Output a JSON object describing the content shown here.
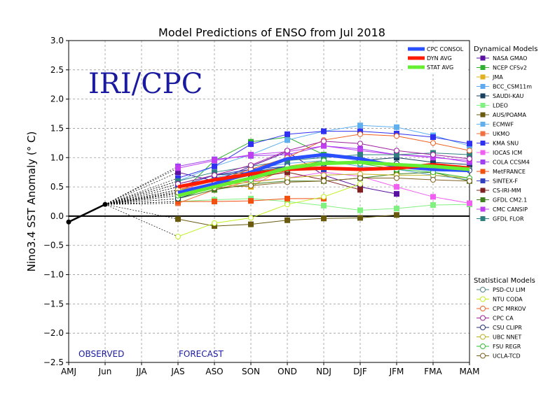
{
  "chart_data": {
    "type": "line",
    "title": "Model Predictions of ENSO from Jul 2018",
    "ylabel": "Nino3.4 SST Anomaly (° C)",
    "xlabel": "",
    "watermark": "IRI/CPC",
    "observed_label": "OBSERVED",
    "forecast_label": "FORECAST",
    "categories": [
      "AMJ",
      "Jun",
      "JJA",
      "JAS",
      "ASO",
      "SON",
      "OND",
      "NDJ",
      "DJF",
      "JFM",
      "FMA",
      "MAM"
    ],
    "yticks": [
      "3.0",
      "2.5",
      "2.0",
      "1.5",
      "1.0",
      "0.5",
      "0.0",
      "−0.5",
      "−1.0",
      "−1.5",
      "−2.0",
      "−2.5"
    ],
    "ytick_values": [
      3.0,
      2.5,
      2.0,
      1.5,
      1.0,
      0.5,
      0.0,
      -0.5,
      -1.0,
      -1.5,
      -2.0,
      -2.5
    ],
    "ylim": [
      -2.5,
      3.0
    ],
    "grid": true,
    "observed": [
      -0.1,
      0.2
    ],
    "consensus_legend": [
      {
        "name": "CPC CONSOL",
        "color": "#2a4fff"
      },
      {
        "name": "DYN AVG",
        "color": "#ff1a00"
      },
      {
        "name": "STAT AVG",
        "color": "#66ee33"
      }
    ],
    "dynamical_header": "Dynamical Models",
    "statistical_header": "Statistical Models",
    "consensus": [
      {
        "name": "CPC CONSOL",
        "color": "#2a4fff",
        "values": [
          null,
          null,
          null,
          0.4,
          0.55,
          0.75,
          0.98,
          1.05,
          0.98,
          0.85,
          0.8,
          0.78
        ]
      },
      {
        "name": "DYN AVG",
        "color": "#ff1a00",
        "values": [
          null,
          null,
          null,
          0.5,
          0.62,
          0.72,
          0.8,
          0.82,
          0.8,
          0.82,
          0.88,
          0.82
        ]
      },
      {
        "name": "STAT AVG",
        "color": "#66ee33",
        "values": [
          null,
          null,
          null,
          0.35,
          0.5,
          0.65,
          0.82,
          0.9,
          0.92,
          0.88,
          0.85,
          0.8
        ]
      }
    ],
    "dynamical": [
      {
        "name": "NASA GMAO",
        "color": "#5a10a0",
        "values": [
          null,
          null,
          null,
          0.75,
          0.6,
          0.85,
          1.1,
          0.7,
          0.5,
          0.38,
          null,
          null
        ]
      },
      {
        "name": "NCEP CFSv2",
        "color": "#30b030",
        "values": [
          null,
          null,
          null,
          0.35,
          0.95,
          1.27,
          1.35,
          1.05,
          1.0,
          null,
          null,
          null
        ]
      },
      {
        "name": "JMA",
        "color": "#e0b020",
        "values": [
          null,
          null,
          null,
          0.4,
          0.55,
          0.5,
          0.85,
          0.95,
          null,
          null,
          null,
          null
        ]
      },
      {
        "name": "BCC_CSM11m",
        "color": "#60a8f0",
        "values": [
          null,
          null,
          null,
          0.5,
          0.65,
          0.8,
          0.9,
          0.95,
          0.85,
          0.8,
          0.7,
          0.62
        ]
      },
      {
        "name": "SAUDI-KAU",
        "color": "#184060",
        "values": [
          null,
          null,
          null,
          0.55,
          0.7,
          0.75,
          0.85,
          0.9,
          0.95,
          1.0,
          0.92,
          0.88
        ]
      },
      {
        "name": "LDEO",
        "color": "#80f080",
        "values": [
          null,
          null,
          null,
          0.25,
          0.28,
          0.3,
          0.25,
          0.18,
          0.1,
          0.13,
          0.19,
          0.2
        ]
      },
      {
        "name": "AUS/POAMA",
        "color": "#6a5a10",
        "values": [
          null,
          null,
          null,
          -0.05,
          -0.17,
          -0.14,
          -0.07,
          -0.04,
          -0.03,
          0.02,
          null,
          null
        ]
      },
      {
        "name": "ECMWF",
        "color": "#60b0f0",
        "values": [
          null,
          null,
          null,
          0.6,
          0.85,
          1.05,
          1.3,
          1.45,
          1.55,
          1.52,
          1.38,
          1.2
        ]
      },
      {
        "name": "UKMO",
        "color": "#f07040",
        "values": [
          null,
          null,
          null,
          0.22,
          0.45,
          0.6,
          0.78,
          null,
          null,
          null,
          null,
          null
        ]
      },
      {
        "name": "KMA SNU",
        "color": "#3030f0",
        "values": [
          null,
          null,
          null,
          0.65,
          0.85,
          1.23,
          1.4,
          1.45,
          1.45,
          1.41,
          1.35,
          1.24
        ]
      },
      {
        "name": "IOCAS ICM",
        "color": "#f060f0",
        "values": [
          null,
          null,
          null,
          0.45,
          0.55,
          0.6,
          0.65,
          0.75,
          0.68,
          0.5,
          0.33,
          0.22
        ]
      },
      {
        "name": "COLA CCSM4",
        "color": "#a040f0",
        "values": [
          null,
          null,
          null,
          0.85,
          0.97,
          1.03,
          1.05,
          1.2,
          1.15,
          1.05,
          1.02,
          0.92
        ]
      },
      {
        "name": "MetFRANCE",
        "color": "#f05010",
        "values": [
          null,
          null,
          null,
          0.25,
          0.25,
          0.26,
          0.3,
          0.3,
          null,
          null,
          null,
          null
        ]
      },
      {
        "name": "SINTEX-F",
        "color": "#3040c0",
        "values": [
          null,
          null,
          null,
          0.5,
          0.7,
          0.8,
          0.85,
          0.8,
          null,
          null,
          null,
          null
        ]
      },
      {
        "name": "CS-IRI-MM",
        "color": "#802020",
        "values": [
          null,
          null,
          null,
          0.42,
          0.55,
          0.65,
          0.75,
          0.62,
          0.45,
          null,
          null,
          null
        ]
      },
      {
        "name": "GFDL CM2.1",
        "color": "#408020",
        "values": [
          null,
          null,
          null,
          0.3,
          0.45,
          0.55,
          0.6,
          0.6,
          0.65,
          0.72,
          0.75,
          0.6
        ]
      },
      {
        "name": "CMC CANSIP",
        "color": "#c040f0",
        "values": [
          null,
          null,
          null,
          0.82,
          0.95,
          1.05,
          1.1,
          1.2,
          1.12,
          1.05,
          1.0,
          0.95
        ]
      },
      {
        "name": "GFDL FLOR",
        "color": "#308080",
        "values": [
          null,
          null,
          null,
          0.6,
          0.75,
          0.85,
          0.95,
          1.0,
          1.05,
          1.05,
          1.08,
          1.05
        ]
      }
    ],
    "statistical": [
      {
        "name": "PSD-CU LIM",
        "color": "#508080",
        "values": [
          null,
          null,
          null,
          0.38,
          0.55,
          0.7,
          0.85,
          0.9,
          0.92,
          0.9,
          0.85,
          0.8
        ]
      },
      {
        "name": "NTU CODA",
        "color": "#c0f020",
        "values": [
          null,
          null,
          null,
          -0.35,
          -0.12,
          -0.03,
          0.2,
          0.33,
          0.55,
          null,
          null,
          null
        ]
      },
      {
        "name": "CPC MRKOV",
        "color": "#f06020",
        "values": [
          null,
          null,
          null,
          0.45,
          0.6,
          0.8,
          1.0,
          1.3,
          1.4,
          1.37,
          1.25,
          1.12
        ]
      },
      {
        "name": "CPC CA",
        "color": "#a020a0",
        "values": [
          null,
          null,
          null,
          0.55,
          0.7,
          0.87,
          1.12,
          1.28,
          1.24,
          1.12,
          1.05,
          0.98
        ]
      },
      {
        "name": "CSU CLIPR",
        "color": "#203070",
        "values": [
          null,
          null,
          null,
          0.3,
          0.5,
          0.65,
          0.8,
          0.9,
          0.95,
          0.9,
          0.82,
          0.78
        ]
      },
      {
        "name": "UBC NNET",
        "color": "#c0b020",
        "values": [
          null,
          null,
          null,
          0.45,
          0.52,
          0.58,
          0.65,
          0.7,
          0.72,
          0.7,
          0.7,
          0.65
        ]
      },
      {
        "name": "FSU REGR",
        "color": "#30c030",
        "values": [
          null,
          null,
          null,
          0.35,
          0.52,
          0.62,
          0.8,
          0.95,
          0.9,
          0.8,
          0.75,
          0.65
        ]
      },
      {
        "name": "UCLA-TCD",
        "color": "#806020",
        "values": [
          null,
          null,
          null,
          0.4,
          0.48,
          0.52,
          0.58,
          0.6,
          0.65,
          0.65,
          0.62,
          0.6
        ]
      }
    ]
  }
}
